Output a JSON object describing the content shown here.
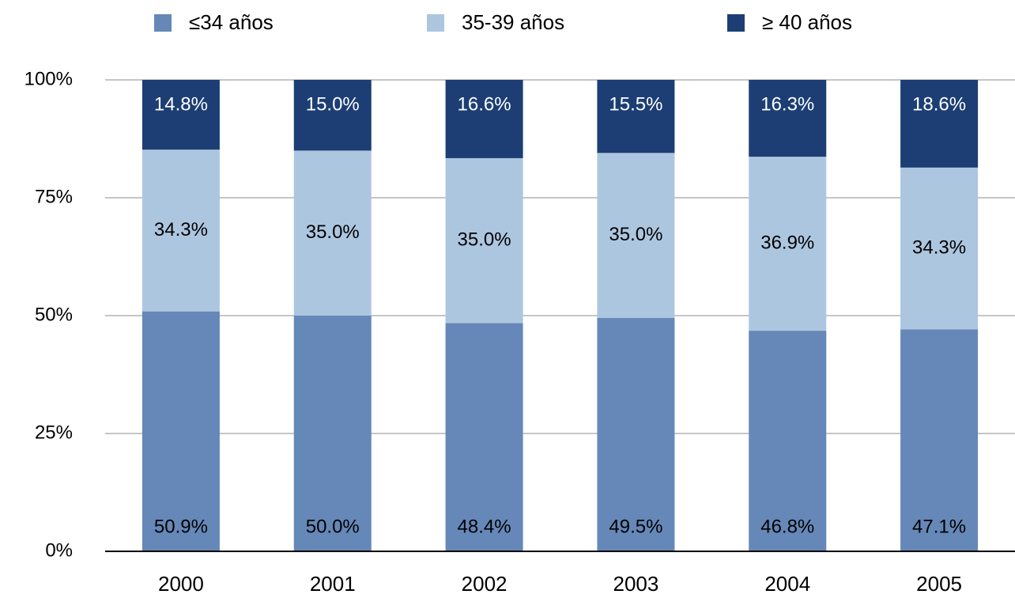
{
  "chart_data": {
    "type": "stacked_bar",
    "categories": [
      "2000",
      "2001",
      "2002",
      "2003",
      "2004",
      "2005"
    ],
    "series": [
      {
        "name": "≤34 años",
        "color": "#6688b8",
        "values": [
          50.9,
          50.0,
          48.4,
          49.5,
          46.8,
          47.1
        ],
        "value_labels": [
          "50.9%",
          "50.0%",
          "48.4%",
          "49.5%",
          "46.8%",
          "47.1%"
        ]
      },
      {
        "name": "35-39 años",
        "color": "#adc6e0",
        "values": [
          34.3,
          35.0,
          35.0,
          35.0,
          36.9,
          34.3
        ],
        "value_labels": [
          "34.3%",
          "35.0%",
          "35.0%",
          "35.0%",
          "36.9%",
          "34.3%"
        ]
      },
      {
        "name": "≥ 40 años",
        "color": "#1c3e74",
        "values": [
          14.8,
          15.0,
          16.6,
          15.5,
          16.3,
          18.6
        ],
        "value_labels": [
          "14.8%",
          "15.0%",
          "16.6%",
          "15.5%",
          "16.3%",
          "18.6%"
        ]
      }
    ],
    "ylim": [
      0,
      100
    ],
    "yticks": [
      {
        "value": 0,
        "label": "0%"
      },
      {
        "value": 25,
        "label": "25%"
      },
      {
        "value": 50,
        "label": "50%"
      },
      {
        "value": 75,
        "label": "75%"
      },
      {
        "value": 100,
        "label": "100%"
      }
    ],
    "grid": true,
    "legend": "top"
  }
}
